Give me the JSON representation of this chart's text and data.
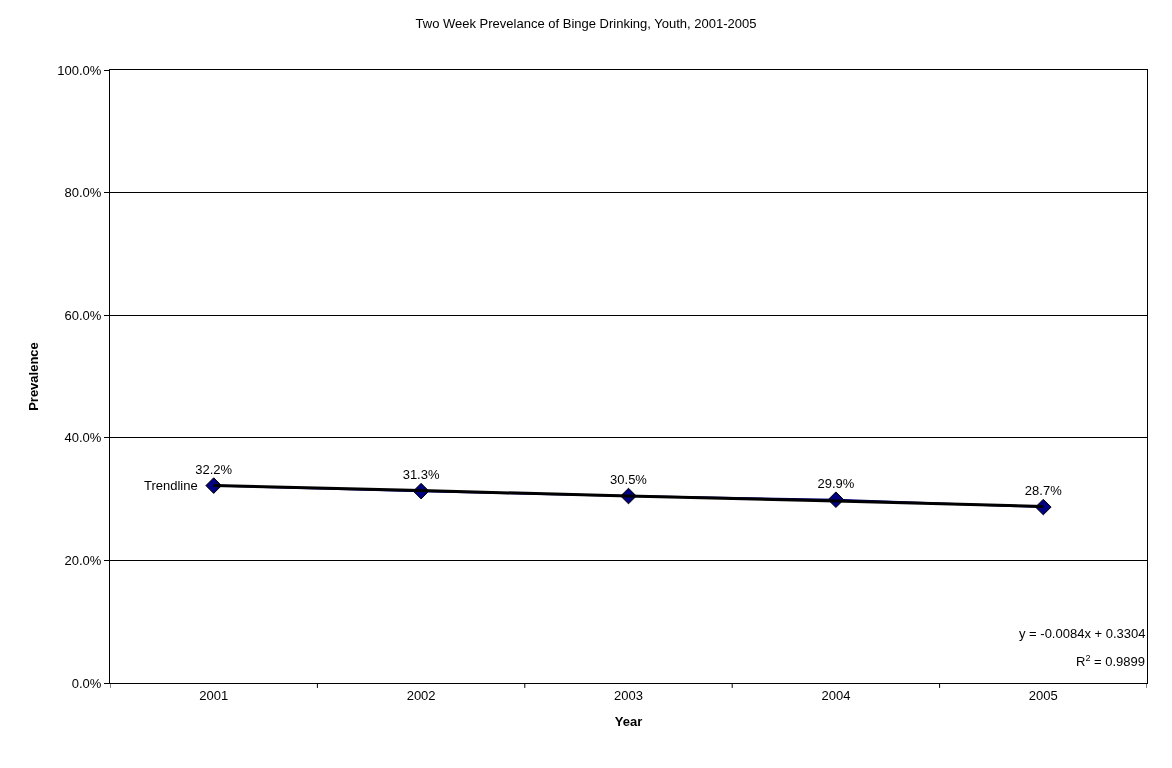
{
  "chart_data": {
    "type": "line",
    "title": "Two Week Prevelance of Binge Drinking, Youth, 2001-2005",
    "xlabel": "Year",
    "ylabel": "Prevalence",
    "categories": [
      "2001",
      "2002",
      "2003",
      "2004",
      "2005"
    ],
    "series": [
      {
        "color": "#000080",
        "values": [
          32.2,
          31.3,
          30.5,
          29.9,
          28.7
        ],
        "value_labels": [
          "32.2%",
          "31.3%",
          "30.5%",
          "29.9%",
          "28.7%"
        ],
        "marker": "diamond"
      },
      {
        "name": "Trendline",
        "type": "line",
        "color": "#000000",
        "values": [
          32.2,
          31.4,
          30.5,
          29.7,
          28.8
        ],
        "marker": "none"
      }
    ],
    "ylim": [
      0,
      100
    ],
    "yticks": [
      {
        "value": 0,
        "label": "0.0%"
      },
      {
        "value": 20,
        "label": "20.0%"
      },
      {
        "value": 40,
        "label": "40.0%"
      },
      {
        "value": 60,
        "label": "60.0%"
      },
      {
        "value": 80,
        "label": "80.0%"
      },
      {
        "value": 100,
        "label": "100.0%"
      }
    ],
    "grid": "y",
    "legend": false,
    "annotations": [
      "y = -0.0084x + 0.3304",
      "R$^{2}$ = 0.9899"
    ]
  }
}
